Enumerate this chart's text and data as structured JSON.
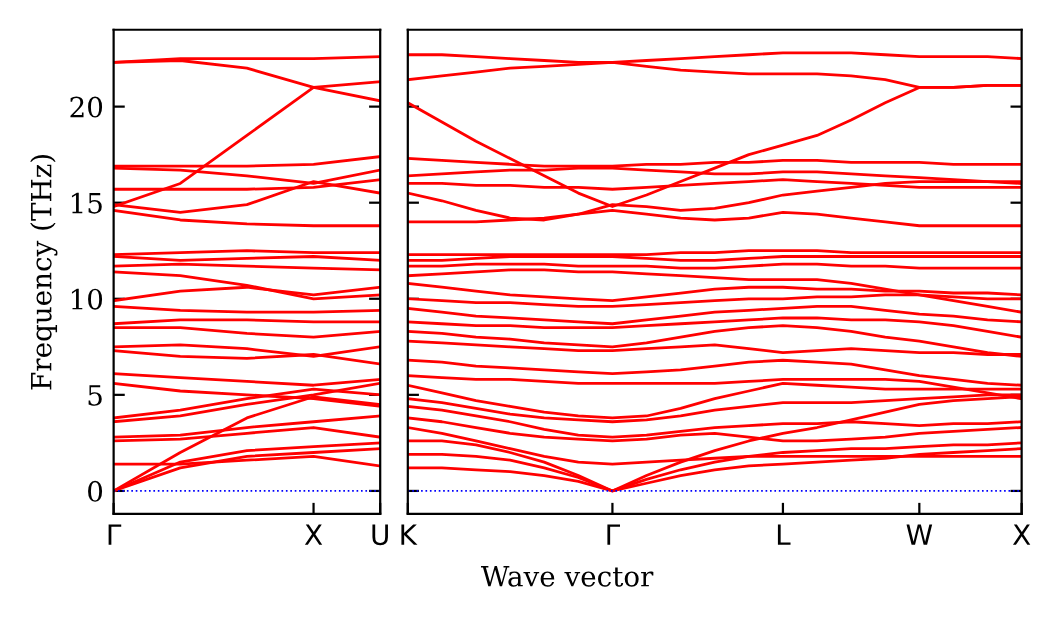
{
  "chart_data": [
    {
      "type": "line",
      "ylabel": "Frequency (THz)",
      "categories": [
        "Γ",
        null,
        null,
        "X",
        "U"
      ],
      "ylim": [
        -1.2,
        24
      ],
      "yticks": [
        0,
        5,
        10,
        15,
        20
      ],
      "marker": "none",
      "line_style": "solid",
      "ref_lines": [
        {
          "axis": "y",
          "value": 0,
          "color": "#0000ff",
          "line_style": "dotted"
        }
      ],
      "series": [
        {
          "color": "#ff0000",
          "values": [
            0,
            1.2,
            1.8,
            2.0,
            2.2
          ]
        },
        {
          "color": "#ff0000",
          "values": [
            0,
            1.5,
            2.1,
            2.3,
            2.5
          ]
        },
        {
          "color": "#ff0000",
          "values": [
            0,
            2.0,
            3.8,
            4.9,
            4.5
          ]
        },
        {
          "color": "#ff0000",
          "values": [
            1.4,
            1.4,
            1.6,
            1.8,
            1.3
          ]
        },
        {
          "color": "#ff0000",
          "values": [
            2.6,
            2.7,
            3.0,
            3.3,
            2.8
          ]
        },
        {
          "color": "#ff0000",
          "values": [
            2.8,
            2.9,
            3.3,
            3.6,
            3.9
          ]
        },
        {
          "color": "#ff0000",
          "values": [
            3.6,
            3.9,
            4.5,
            5.0,
            5.6
          ]
        },
        {
          "color": "#ff0000",
          "values": [
            3.8,
            4.2,
            4.8,
            5.3,
            5.0
          ]
        },
        {
          "color": "#ff0000",
          "values": [
            5.6,
            5.2,
            5.0,
            4.8,
            4.4
          ]
        },
        {
          "color": "#ff0000",
          "values": [
            6.1,
            5.9,
            5.7,
            5.5,
            5.8
          ]
        },
        {
          "color": "#ff0000",
          "values": [
            7.3,
            7.0,
            6.9,
            7.1,
            6.6
          ]
        },
        {
          "color": "#ff0000",
          "values": [
            7.5,
            7.6,
            7.4,
            7.0,
            7.5
          ]
        },
        {
          "color": "#ff0000",
          "values": [
            8.5,
            8.5,
            8.2,
            8.0,
            8.3
          ]
        },
        {
          "color": "#ff0000",
          "values": [
            8.7,
            8.9,
            8.9,
            8.8,
            8.8
          ]
        },
        {
          "color": "#ff0000",
          "values": [
            9.6,
            9.4,
            9.3,
            9.3,
            9.4
          ]
        },
        {
          "color": "#ff0000",
          "values": [
            9.9,
            10.4,
            10.6,
            10.2,
            10.6
          ]
        },
        {
          "color": "#ff0000",
          "values": [
            11.4,
            11.2,
            10.7,
            10.0,
            10.2
          ]
        },
        {
          "color": "#ff0000",
          "values": [
            11.7,
            11.8,
            11.7,
            11.6,
            11.5
          ]
        },
        {
          "color": "#ff0000",
          "values": [
            12.2,
            12.0,
            12.1,
            12.2,
            12.0
          ]
        },
        {
          "color": "#ff0000",
          "values": [
            12.3,
            12.4,
            12.5,
            12.4,
            12.4
          ]
        },
        {
          "color": "#ff0000",
          "values": [
            14.6,
            14.1,
            13.9,
            13.8,
            13.8
          ]
        },
        {
          "color": "#ff0000",
          "values": [
            14.9,
            14.5,
            14.9,
            16.1,
            15.5
          ]
        },
        {
          "color": "#ff0000",
          "values": [
            15.7,
            15.7,
            15.7,
            15.8,
            16.2
          ]
        },
        {
          "color": "#ff0000",
          "values": [
            16.8,
            16.7,
            16.4,
            16.0,
            16.7
          ]
        },
        {
          "color": "#ff0000",
          "values": [
            16.9,
            16.9,
            16.9,
            17.0,
            17.4
          ]
        },
        {
          "color": "#ff0000",
          "values": [
            14.8,
            16.0,
            18.5,
            21.0,
            20.3
          ]
        },
        {
          "color": "#ff0000",
          "values": [
            22.3,
            22.4,
            22.0,
            21.0,
            21.3
          ]
        },
        {
          "color": "#ff0000",
          "values": [
            22.3,
            22.5,
            22.5,
            22.5,
            22.6
          ]
        }
      ]
    },
    {
      "type": "line",
      "xlabel": "Wave vector",
      "categories": [
        "K",
        null,
        null,
        null,
        null,
        null,
        "Γ",
        null,
        null,
        null,
        null,
        "L",
        null,
        null,
        null,
        "W",
        null,
        null,
        "X"
      ],
      "ylim": [
        -1.2,
        24
      ],
      "yticks": [
        {
          "value": 0,
          "label": null
        },
        {
          "value": 5,
          "label": null
        },
        {
          "value": 10,
          "label": null
        },
        {
          "value": 15,
          "label": null
        },
        {
          "value": 20,
          "label": null
        }
      ],
      "tick_labels": "x",
      "marker": "none",
      "line_style": "solid",
      "ref_lines": [
        {
          "axis": "y",
          "value": 0,
          "color": "#0000ff",
          "line_style": "dotted"
        }
      ],
      "series": [
        {
          "color": "#ff0000",
          "values": [
            1.2,
            1.2,
            1.1,
            1.0,
            0.8,
            0.5,
            0,
            0.4,
            0.8,
            1.1,
            1.3,
            1.4,
            1.5,
            1.6,
            1.7,
            1.9,
            2.0,
            2.1,
            2.2
          ]
        },
        {
          "color": "#ff0000",
          "values": [
            1.9,
            1.9,
            1.8,
            1.6,
            1.2,
            0.7,
            0,
            0.6,
            1.1,
            1.5,
            1.8,
            2.0,
            2.1,
            2.2,
            2.2,
            2.3,
            2.4,
            2.4,
            2.5
          ]
        },
        {
          "color": "#ff0000",
          "values": [
            2.6,
            2.6,
            2.4,
            2.0,
            1.5,
            0.8,
            0,
            0.8,
            1.5,
            2.1,
            2.6,
            3.0,
            3.3,
            3.7,
            4.1,
            4.5,
            4.7,
            4.8,
            4.9
          ]
        },
        {
          "color": "#ff0000",
          "values": [
            3.3,
            3.0,
            2.6,
            2.2,
            1.8,
            1.5,
            1.4,
            1.5,
            1.6,
            1.7,
            1.8,
            1.8,
            1.8,
            1.8,
            1.8,
            1.8,
            1.8,
            1.8,
            1.8
          ]
        },
        {
          "color": "#ff0000",
          "values": [
            3.8,
            3.6,
            3.3,
            3.0,
            2.8,
            2.7,
            2.6,
            2.7,
            2.9,
            3.0,
            2.8,
            2.6,
            2.6,
            2.7,
            2.8,
            3.0,
            3.1,
            3.2,
            3.3
          ]
        },
        {
          "color": "#ff0000",
          "values": [
            4.4,
            4.2,
            3.9,
            3.6,
            3.2,
            2.9,
            2.8,
            2.9,
            3.1,
            3.3,
            3.4,
            3.5,
            3.5,
            3.6,
            3.5,
            3.4,
            3.5,
            3.5,
            3.6
          ]
        },
        {
          "color": "#ff0000",
          "values": [
            4.8,
            4.6,
            4.3,
            4.0,
            3.8,
            3.7,
            3.6,
            3.7,
            3.9,
            4.2,
            4.4,
            4.6,
            4.6,
            4.6,
            4.7,
            4.8,
            4.9,
            5.0,
            5.0
          ]
        },
        {
          "color": "#ff0000",
          "values": [
            5.5,
            5.1,
            4.7,
            4.4,
            4.1,
            3.9,
            3.8,
            3.9,
            4.3,
            4.8,
            5.2,
            5.6,
            5.5,
            5.4,
            5.3,
            5.3,
            5.3,
            5.3,
            5.3
          ]
        },
        {
          "color": "#ff0000",
          "values": [
            6.0,
            5.9,
            5.8,
            5.8,
            5.7,
            5.6,
            5.6,
            5.6,
            5.6,
            5.6,
            5.7,
            5.8,
            5.8,
            5.8,
            5.8,
            5.7,
            5.4,
            5.1,
            4.8
          ]
        },
        {
          "color": "#ff0000",
          "values": [
            6.8,
            6.7,
            6.5,
            6.4,
            6.3,
            6.2,
            6.1,
            6.2,
            6.3,
            6.5,
            6.7,
            6.8,
            6.7,
            6.6,
            6.3,
            6.0,
            5.8,
            5.6,
            5.5
          ]
        },
        {
          "color": "#ff0000",
          "values": [
            7.8,
            7.7,
            7.6,
            7.5,
            7.4,
            7.3,
            7.3,
            7.4,
            7.5,
            7.6,
            7.4,
            7.2,
            7.3,
            7.4,
            7.3,
            7.2,
            7.2,
            7.1,
            7.1
          ]
        },
        {
          "color": "#ff0000",
          "values": [
            8.3,
            8.2,
            8.0,
            7.9,
            7.7,
            7.6,
            7.5,
            7.7,
            8.0,
            8.3,
            8.5,
            8.6,
            8.5,
            8.3,
            8.0,
            7.8,
            7.5,
            7.2,
            7.0
          ]
        },
        {
          "color": "#ff0000",
          "values": [
            8.8,
            8.7,
            8.6,
            8.6,
            8.5,
            8.5,
            8.5,
            8.6,
            8.7,
            8.8,
            8.9,
            9.0,
            9.0,
            8.9,
            8.9,
            8.8,
            8.6,
            8.3,
            8.0
          ]
        },
        {
          "color": "#ff0000",
          "values": [
            9.5,
            9.3,
            9.1,
            9.0,
            8.9,
            8.8,
            8.7,
            8.9,
            9.1,
            9.3,
            9.4,
            9.5,
            9.6,
            9.6,
            9.4,
            9.2,
            9.1,
            8.9,
            8.8
          ]
        },
        {
          "color": "#ff0000",
          "values": [
            10.0,
            9.9,
            9.8,
            9.8,
            9.7,
            9.6,
            9.6,
            9.7,
            9.8,
            9.9,
            10.0,
            10.0,
            10.1,
            10.1,
            10.2,
            10.2,
            9.9,
            9.6,
            9.3
          ]
        },
        {
          "color": "#ff0000",
          "values": [
            10.8,
            10.6,
            10.4,
            10.2,
            10.1,
            10.0,
            9.9,
            10.1,
            10.3,
            10.5,
            10.6,
            10.6,
            10.5,
            10.5,
            10.4,
            10.4,
            10.3,
            10.3,
            10.2
          ]
        },
        {
          "color": "#ff0000",
          "values": [
            11.2,
            11.3,
            11.4,
            11.5,
            11.5,
            11.4,
            11.4,
            11.3,
            11.2,
            11.1,
            11.0,
            11.0,
            11.0,
            10.8,
            10.5,
            10.2,
            10.1,
            10.0,
            10.0
          ]
        },
        {
          "color": "#ff0000",
          "values": [
            11.7,
            11.7,
            11.8,
            11.8,
            11.8,
            11.7,
            11.7,
            11.7,
            11.6,
            11.6,
            11.7,
            11.8,
            11.8,
            11.7,
            11.7,
            11.6,
            11.6,
            11.6,
            11.6
          ]
        },
        {
          "color": "#ff0000",
          "values": [
            12.0,
            12.0,
            12.1,
            12.2,
            12.2,
            12.2,
            12.2,
            12.1,
            12.0,
            12.0,
            12.1,
            12.2,
            12.2,
            12.2,
            12.2,
            12.2,
            12.2,
            12.2,
            12.2
          ]
        },
        {
          "color": "#ff0000",
          "values": [
            12.3,
            12.3,
            12.3,
            12.3,
            12.3,
            12.3,
            12.3,
            12.3,
            12.4,
            12.4,
            12.5,
            12.5,
            12.5,
            12.4,
            12.4,
            12.4,
            12.4,
            12.4,
            12.4
          ]
        },
        {
          "color": "#ff0000",
          "values": [
            14.0,
            14.0,
            14.0,
            14.1,
            14.2,
            14.4,
            14.6,
            14.4,
            14.2,
            14.1,
            14.2,
            14.5,
            14.4,
            14.2,
            14.0,
            13.8,
            13.8,
            13.8,
            13.8
          ]
        },
        {
          "color": "#ff0000",
          "values": [
            15.5,
            15.1,
            14.6,
            14.2,
            14.1,
            14.4,
            14.9,
            14.8,
            14.6,
            14.7,
            15.0,
            15.4,
            15.6,
            15.8,
            16.0,
            16.1,
            16.1,
            16.1,
            16.1
          ]
        },
        {
          "color": "#ff0000",
          "values": [
            16.0,
            16.0,
            15.9,
            15.9,
            15.8,
            15.8,
            15.7,
            15.8,
            15.9,
            16.0,
            16.1,
            16.2,
            16.1,
            16.0,
            15.9,
            15.8,
            15.8,
            15.8,
            15.8
          ]
        },
        {
          "color": "#ff0000",
          "values": [
            16.4,
            16.5,
            16.6,
            16.7,
            16.7,
            16.8,
            16.8,
            16.7,
            16.6,
            16.5,
            16.5,
            16.6,
            16.6,
            16.5,
            16.4,
            16.3,
            16.2,
            16.1,
            16.0
          ]
        },
        {
          "color": "#ff0000",
          "values": [
            17.3,
            17.2,
            17.1,
            17.0,
            16.9,
            16.9,
            16.9,
            17.0,
            17.0,
            17.1,
            17.1,
            17.2,
            17.2,
            17.1,
            17.1,
            17.1,
            17.0,
            17.0,
            17.0
          ]
        },
        {
          "color": "#ff0000",
          "values": [
            20.2,
            19.2,
            18.2,
            17.3,
            16.4,
            15.5,
            14.8,
            15.4,
            16.1,
            16.8,
            17.5,
            18.0,
            18.5,
            19.3,
            20.2,
            21.0,
            21.0,
            21.1,
            21.1
          ]
        },
        {
          "color": "#ff0000",
          "values": [
            21.4,
            21.6,
            21.8,
            22.0,
            22.1,
            22.2,
            22.3,
            22.1,
            21.9,
            21.8,
            21.7,
            21.7,
            21.7,
            21.6,
            21.4,
            21.0,
            21.0,
            21.1,
            21.1
          ]
        },
        {
          "color": "#ff0000",
          "values": [
            22.7,
            22.7,
            22.6,
            22.5,
            22.4,
            22.3,
            22.3,
            22.4,
            22.5,
            22.6,
            22.7,
            22.8,
            22.8,
            22.8,
            22.7,
            22.6,
            22.6,
            22.6,
            22.5
          ]
        }
      ]
    }
  ]
}
